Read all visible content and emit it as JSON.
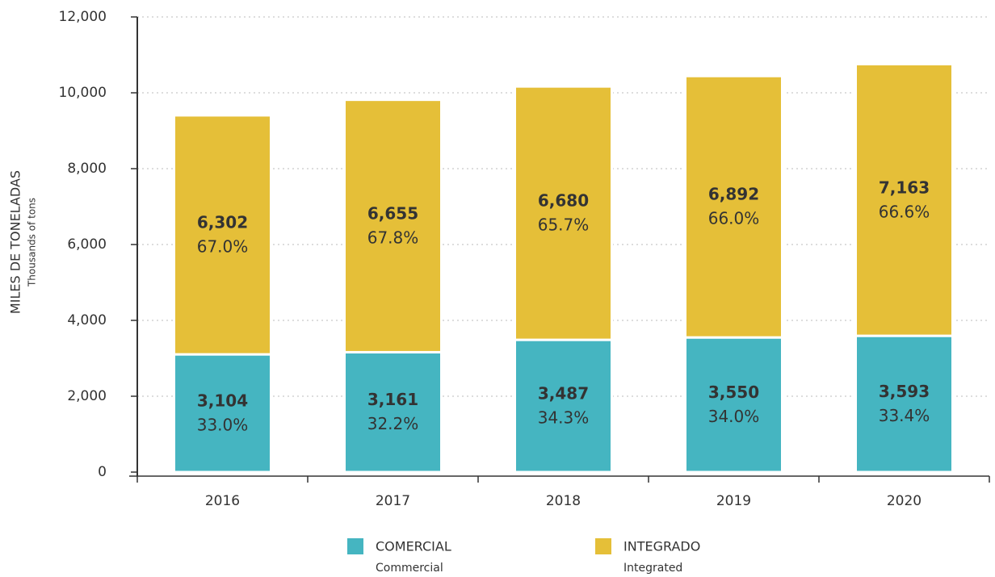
{
  "chart_data": {
    "type": "stacked_bar",
    "y_axis_label": "MILES DE TONELADAS",
    "y_axis_sublabel": "Thousands of tons",
    "categories": [
      "2016",
      "2017",
      "2018",
      "2019",
      "2020"
    ],
    "series": [
      {
        "name": "COMERCIAL",
        "name_en": "Commercial",
        "color": "#45b5c1",
        "values": [
          3104,
          3161,
          3487,
          3550,
          3593
        ],
        "value_labels": [
          "3,104",
          "3,161",
          "3,487",
          "3,550",
          "3,593"
        ],
        "shares": [
          33.0,
          32.2,
          34.3,
          34.0,
          33.4
        ],
        "share_labels": [
          "33.0%",
          "32.2%",
          "34.3%",
          "34.0%",
          "33.4%"
        ]
      },
      {
        "name": "INTEGRADO",
        "name_en": "Integrated",
        "color": "#e5bf38",
        "values": [
          6302,
          6655,
          6680,
          6892,
          7163
        ],
        "value_labels": [
          "6,302",
          "6,655",
          "6,680",
          "6,892",
          "7,163"
        ],
        "shares": [
          67.0,
          67.8,
          65.7,
          66.0,
          66.6
        ],
        "share_labels": [
          "67.0%",
          "67.8%",
          "65.7%",
          "66.0%",
          "66.6%"
        ]
      }
    ],
    "ylim": [
      0,
      12000
    ],
    "yticks": [
      0,
      {
        "value": 2000,
        "label": "2,000"
      },
      {
        "value": 4000,
        "label": "4,000"
      },
      {
        "value": 6000,
        "label": "6,000"
      },
      {
        "value": 8000,
        "label": "8,000"
      },
      {
        "value": 10000,
        "label": "10,000"
      },
      {
        "value": 12000,
        "label": "12,000"
      }
    ],
    "grid": true
  }
}
